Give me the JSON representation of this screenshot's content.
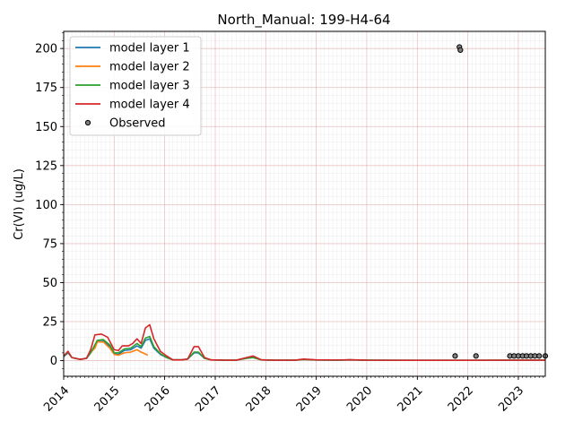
{
  "chart_data": {
    "type": "line",
    "title": "North_Manual: 199-H4-64",
    "xlabel": "",
    "ylabel": "Cr(VI) (ug/L)",
    "xlim": [
      "2014-01-01",
      "2023-07-15"
    ],
    "ylim": [
      -10,
      211
    ],
    "x_ticks": [
      "2014",
      "2015",
      "2016",
      "2017",
      "2018",
      "2019",
      "2020",
      "2021",
      "2022",
      "2023"
    ],
    "y_ticks": [
      0,
      25,
      50,
      75,
      100,
      125,
      150,
      175,
      200
    ],
    "grid": true,
    "legend_position": "upper-left",
    "series": [
      {
        "name": "model layer 1",
        "color": "#1f77b4",
        "points": [
          [
            "2014-01-01",
            2.5
          ],
          [
            "2014-02-01",
            5
          ],
          [
            "2014-03-01",
            2
          ],
          [
            "2014-05-01",
            0.8
          ],
          [
            "2014-06-15",
            1.5
          ],
          [
            "2014-07-15",
            5
          ],
          [
            "2014-09-01",
            12
          ],
          [
            "2014-10-15",
            12.5
          ],
          [
            "2014-12-01",
            9
          ],
          [
            "2015-01-01",
            4.5
          ],
          [
            "2015-02-01",
            4
          ],
          [
            "2015-03-15",
            6.5
          ],
          [
            "2015-05-01",
            7
          ],
          [
            "2015-06-15",
            9.5
          ],
          [
            "2015-07-15",
            8
          ],
          [
            "2015-08-15",
            13
          ],
          [
            "2015-09-15",
            14
          ],
          [
            "2015-10-15",
            8
          ],
          [
            "2015-12-01",
            4
          ],
          [
            "2016-01-15",
            2
          ],
          [
            "2016-03-01",
            0.5
          ],
          [
            "2016-05-01",
            0.5
          ],
          [
            "2016-06-15",
            1
          ],
          [
            "2016-08-01",
            5
          ],
          [
            "2016-09-01",
            5
          ],
          [
            "2016-10-15",
            1.5
          ],
          [
            "2016-12-01",
            0.5
          ],
          [
            "2017-03-01",
            0.3
          ],
          [
            "2017-06-01",
            0.3
          ],
          [
            "2017-08-15",
            1.5
          ],
          [
            "2017-10-01",
            2
          ],
          [
            "2017-12-01",
            0.5
          ],
          [
            "2018-03-01",
            0.3
          ],
          [
            "2018-08-01",
            0.3
          ],
          [
            "2018-10-01",
            0.8
          ],
          [
            "2019-01-01",
            0.4
          ],
          [
            "2019-06-01",
            0.3
          ],
          [
            "2019-09-01",
            0.5
          ],
          [
            "2020-01-01",
            0.3
          ],
          [
            "2021-01-01",
            0.2
          ],
          [
            "2022-01-01",
            0.2
          ],
          [
            "2023-01-01",
            0.3
          ],
          [
            "2023-07-15",
            0.3
          ]
        ]
      },
      {
        "name": "model layer 2",
        "color": "#ff7f0e",
        "points": [
          [
            "2014-07-01",
            4
          ],
          [
            "2014-08-15",
            8
          ],
          [
            "2014-09-01",
            12
          ],
          [
            "2014-10-15",
            12
          ],
          [
            "2014-12-01",
            8
          ],
          [
            "2015-01-01",
            4
          ],
          [
            "2015-02-01",
            3.5
          ],
          [
            "2015-03-15",
            5
          ],
          [
            "2015-05-01",
            5.5
          ],
          [
            "2015-06-15",
            7
          ],
          [
            "2015-07-15",
            5.5
          ],
          [
            "2015-09-01",
            3.5
          ]
        ]
      },
      {
        "name": "model layer 3",
        "color": "#2ca02c",
        "points": [
          [
            "2014-01-01",
            3
          ],
          [
            "2014-02-01",
            5.5
          ],
          [
            "2014-03-01",
            2
          ],
          [
            "2014-05-01",
            0.8
          ],
          [
            "2014-06-15",
            1.5
          ],
          [
            "2014-07-15",
            5
          ],
          [
            "2014-09-01",
            13
          ],
          [
            "2014-10-15",
            13.5
          ],
          [
            "2014-12-01",
            10
          ],
          [
            "2015-01-01",
            5
          ],
          [
            "2015-02-01",
            5
          ],
          [
            "2015-03-15",
            7.5
          ],
          [
            "2015-05-01",
            8
          ],
          [
            "2015-06-15",
            11
          ],
          [
            "2015-07-15",
            9
          ],
          [
            "2015-08-15",
            14.5
          ],
          [
            "2015-09-15",
            15.5
          ],
          [
            "2015-10-15",
            9
          ],
          [
            "2015-12-01",
            4.5
          ],
          [
            "2016-01-15",
            2
          ],
          [
            "2016-03-01",
            0.5
          ],
          [
            "2016-05-01",
            0.5
          ],
          [
            "2016-06-15",
            1
          ],
          [
            "2016-08-01",
            5.5
          ],
          [
            "2016-09-01",
            5.5
          ],
          [
            "2016-10-15",
            1.5
          ],
          [
            "2016-12-01",
            0.5
          ],
          [
            "2017-03-01",
            0.3
          ],
          [
            "2017-06-01",
            0.3
          ],
          [
            "2017-08-15",
            1.5
          ],
          [
            "2017-10-01",
            2
          ],
          [
            "2017-12-01",
            0.5
          ],
          [
            "2018-03-01",
            0.3
          ],
          [
            "2018-08-01",
            0.3
          ],
          [
            "2018-10-01",
            0.8
          ],
          [
            "2019-01-01",
            0.4
          ],
          [
            "2019-06-01",
            0.3
          ],
          [
            "2019-09-01",
            0.5
          ],
          [
            "2020-01-01",
            0.3
          ],
          [
            "2021-01-01",
            0.2
          ],
          [
            "2022-01-01",
            0.2
          ],
          [
            "2023-01-01",
            0.3
          ],
          [
            "2023-07-15",
            0.3
          ]
        ]
      },
      {
        "name": "model layer 4",
        "color": "#d62728",
        "points": [
          [
            "2014-01-01",
            3
          ],
          [
            "2014-02-01",
            6
          ],
          [
            "2014-03-01",
            2
          ],
          [
            "2014-05-01",
            0.8
          ],
          [
            "2014-06-15",
            1.5
          ],
          [
            "2014-07-15",
            7
          ],
          [
            "2014-08-15",
            16.5
          ],
          [
            "2014-10-01",
            17
          ],
          [
            "2014-11-15",
            15
          ],
          [
            "2015-01-01",
            7
          ],
          [
            "2015-02-01",
            6.5
          ],
          [
            "2015-03-01",
            9.5
          ],
          [
            "2015-04-15",
            9.5
          ],
          [
            "2015-05-15",
            11
          ],
          [
            "2015-06-15",
            14
          ],
          [
            "2015-07-15",
            11
          ],
          [
            "2015-08-15",
            21
          ],
          [
            "2015-09-15",
            23
          ],
          [
            "2015-10-15",
            14
          ],
          [
            "2015-12-01",
            6
          ],
          [
            "2016-01-15",
            3
          ],
          [
            "2016-03-01",
            0.5
          ],
          [
            "2016-05-01",
            0.5
          ],
          [
            "2016-06-15",
            1
          ],
          [
            "2016-08-01",
            9
          ],
          [
            "2016-09-01",
            9
          ],
          [
            "2016-10-15",
            2
          ],
          [
            "2016-12-01",
            0.5
          ],
          [
            "2017-03-01",
            0.3
          ],
          [
            "2017-06-01",
            0.3
          ],
          [
            "2017-08-15",
            2
          ],
          [
            "2017-10-01",
            3
          ],
          [
            "2017-12-01",
            0.5
          ],
          [
            "2018-03-01",
            0.3
          ],
          [
            "2018-08-01",
            0.3
          ],
          [
            "2018-10-01",
            1
          ],
          [
            "2019-01-01",
            0.5
          ],
          [
            "2019-06-01",
            0.4
          ],
          [
            "2019-09-01",
            0.6
          ],
          [
            "2020-01-01",
            0.3
          ],
          [
            "2021-01-01",
            0.2
          ],
          [
            "2022-01-01",
            0.2
          ],
          [
            "2023-01-01",
            0.3
          ],
          [
            "2023-07-15",
            0.3
          ]
        ]
      }
    ],
    "observed": {
      "name": "Observed",
      "points": [
        [
          "2021-10-01",
          3
        ],
        [
          "2021-11-01",
          201
        ],
        [
          "2021-11-08",
          199
        ],
        [
          "2022-03-01",
          3
        ],
        [
          "2022-11-01",
          3
        ],
        [
          "2022-12-01",
          3
        ],
        [
          "2023-01-01",
          3
        ],
        [
          "2023-02-01",
          3
        ],
        [
          "2023-03-01",
          3
        ],
        [
          "2023-04-01",
          3
        ],
        [
          "2023-05-01",
          3
        ],
        [
          "2023-06-01",
          3
        ],
        [
          "2023-07-15",
          3
        ]
      ]
    }
  }
}
